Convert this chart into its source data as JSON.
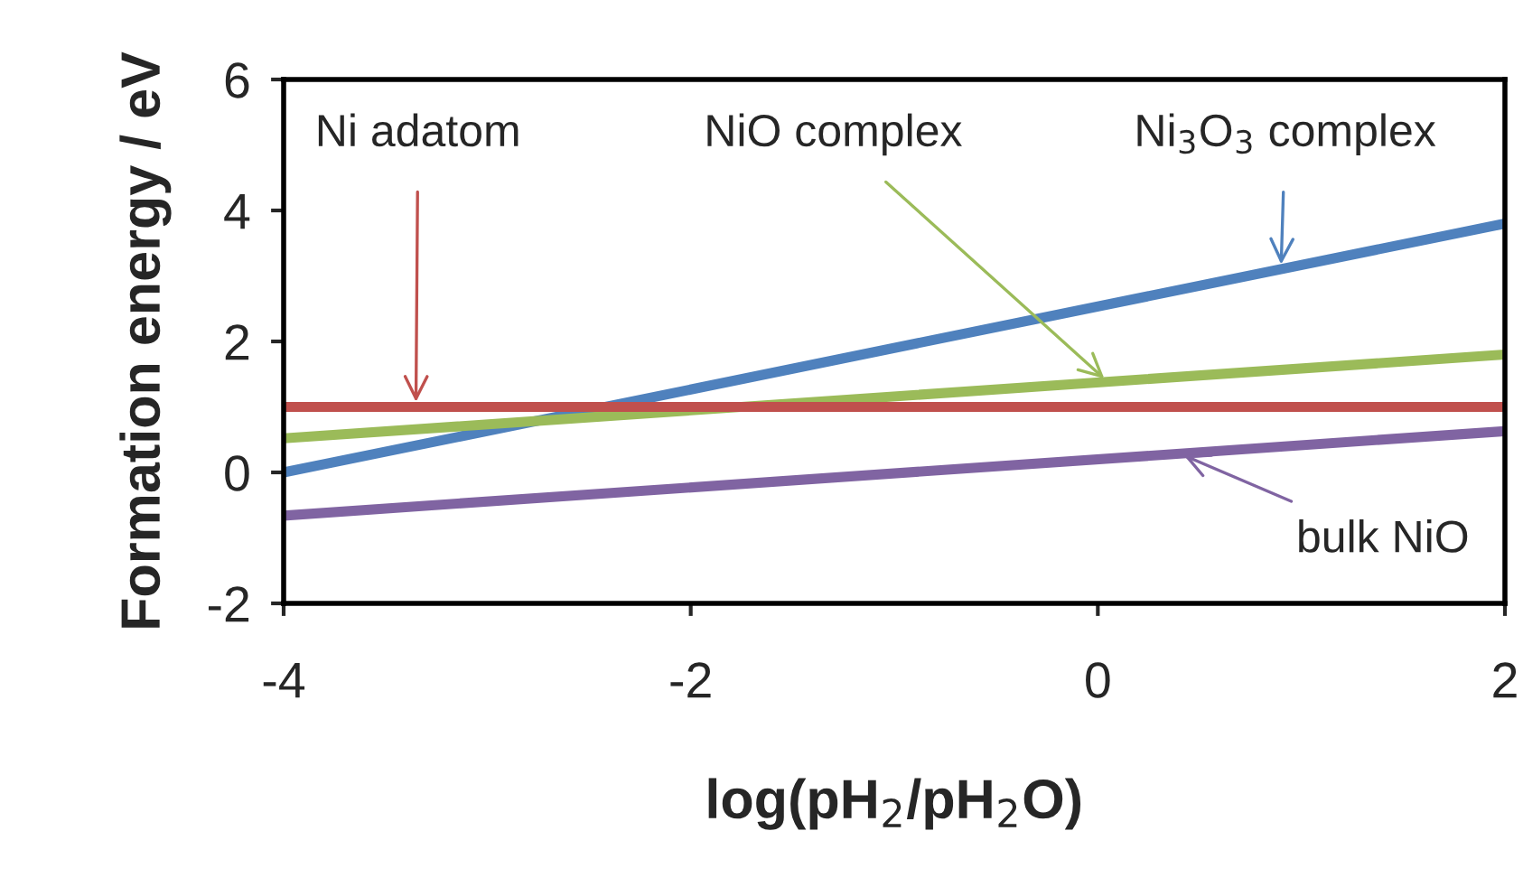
{
  "chart_data": {
    "type": "line",
    "xlabel": "log(pH$_{2}$/pH$_{2}$O)",
    "ylabel": "Formation energy / eV",
    "xlim": [
      -4,
      2
    ],
    "ylim": [
      -2,
      6
    ],
    "xticks": [
      -4,
      -2,
      0,
      2
    ],
    "yticks": [
      -2,
      0,
      2,
      4,
      6
    ],
    "grid": false,
    "legend": false,
    "marker": "none",
    "line_style": "solid",
    "x": [
      -4,
      2
    ],
    "series": [
      {
        "color": "#4f81bd",
        "values": [
          0,
          3.8
        ]
      },
      {
        "color": "#9bbb59",
        "values": [
          0.52,
          1.8
        ]
      },
      {
        "color": "#c0504d",
        "values": [
          1.0,
          1.0
        ]
      },
      {
        "color": "#8064a2",
        "values": [
          -0.66,
          0.63
        ]
      }
    ],
    "annotations": [
      {
        "text": "Ni adatom",
        "x": -3.35,
        "y": 1.0
      },
      {
        "text": "NiO complex",
        "x": 0.05,
        "y": 1.38
      },
      {
        "text": "Ni$_{3}$O$_{3}$ complex",
        "x": 0.9,
        "y": 3.1
      },
      {
        "text": "bulk NiO",
        "x": 0.4,
        "y": 0.29
      }
    ]
  }
}
